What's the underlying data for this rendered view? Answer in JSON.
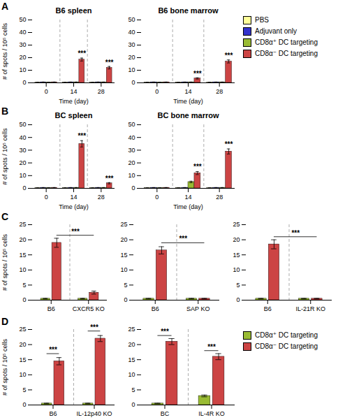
{
  "chart_data": [
    {
      "type": "bar",
      "title": "B6 spleen",
      "subtitle": "A",
      "xlabel": "Time (day)",
      "ylabel": "# of spots / 10⁵ cells",
      "categories": [
        "0",
        "14",
        "28"
      ],
      "series": [
        {
          "name": "PBS",
          "color": "#ffff99",
          "values": [
            0.3,
            0.3,
            0.3
          ],
          "errors": [
            0.1,
            0.1,
            0.1
          ]
        },
        {
          "name": "Adjuvant only",
          "color": "#3333cc",
          "values": [
            0.5,
            0.5,
            0.5
          ],
          "errors": [
            0.1,
            0.1,
            0.1
          ]
        },
        {
          "name": "CD8α⁺ DC targeting",
          "color": "#99bb33",
          "values": [
            0.4,
            0.5,
            0.5
          ],
          "errors": [
            0.1,
            0.1,
            0.1
          ]
        },
        {
          "name": "CD8α⁻ DC targeting",
          "color": "#cc4444",
          "values": [
            0.5,
            18.5,
            12.0
          ],
          "errors": [
            0.1,
            1.2,
            1.0
          ]
        }
      ],
      "ylim": [
        0,
        50
      ],
      "yticks": [
        0,
        10,
        20,
        30,
        40,
        50
      ],
      "annotations": [
        {
          "text": "***",
          "y": 20.8,
          "points": [
            {
              "x": "14",
              "series": "CD8α⁻ DC targeting"
            }
          ]
        },
        {
          "text": "***",
          "y": 13.8,
          "points": [
            {
              "x": "28",
              "series": "CD8α⁻ DC targeting"
            }
          ]
        }
      ]
    },
    {
      "type": "bar",
      "title": "B6 bone marrow",
      "legend": "right",
      "xlabel": "Time (day)",
      "categories": [
        "0",
        "14",
        "28"
      ],
      "series": [
        {
          "name": "PBS",
          "color": "#ffff99",
          "values": [
            0.3,
            0.3,
            0.3
          ],
          "errors": [
            0.1,
            0.1,
            0.1
          ]
        },
        {
          "name": "Adjuvant only",
          "color": "#3333cc",
          "values": [
            0.5,
            0.5,
            0.5
          ],
          "errors": [
            0.1,
            0.1,
            0.1
          ]
        },
        {
          "name": "CD8α⁺ DC targeting",
          "color": "#99bb33",
          "values": [
            0.4,
            0.5,
            0.5
          ],
          "errors": [
            0.1,
            0.1,
            0.1
          ]
        },
        {
          "name": "CD8α⁻ DC targeting",
          "color": "#cc4444",
          "values": [
            0.5,
            3.5,
            17.0
          ],
          "errors": [
            0.1,
            0.5,
            1.2
          ]
        }
      ],
      "ylim": [
        0,
        50
      ],
      "yticks": [
        0,
        10,
        20,
        30,
        40,
        50
      ],
      "annotations": [
        {
          "text": "***",
          "y": 5.0,
          "points": [
            {
              "x": "14",
              "series": "CD8α⁻ DC targeting"
            }
          ]
        },
        {
          "text": "***",
          "y": 19.2,
          "points": [
            {
              "x": "28",
              "series": "CD8α⁻ DC targeting"
            }
          ]
        }
      ]
    },
    {
      "type": "bar",
      "title": "BC spleen",
      "subtitle": "B",
      "xlabel": "Time (day)",
      "ylabel": "# of spots / 10⁵ cells",
      "categories": [
        "0",
        "14",
        "28"
      ],
      "series": [
        {
          "name": "PBS",
          "color": "#ffff99",
          "values": [
            0.3,
            0.3,
            0.3
          ],
          "errors": [
            0.1,
            0.1,
            0.1
          ]
        },
        {
          "name": "Adjuvant only",
          "color": "#3333cc",
          "values": [
            0.5,
            0.5,
            0.5
          ],
          "errors": [
            0.1,
            0.1,
            0.1
          ]
        },
        {
          "name": "CD8α⁺ DC targeting",
          "color": "#99bb33",
          "values": [
            0.4,
            0.5,
            0.5
          ],
          "errors": [
            0.1,
            0.1,
            0.1
          ]
        },
        {
          "name": "CD8α⁻ DC targeting",
          "color": "#cc4444",
          "values": [
            0.5,
            35.0,
            4.0
          ],
          "errors": [
            0.1,
            2.5,
            0.5
          ]
        }
      ],
      "ylim": [
        0,
        50
      ],
      "yticks": [
        0,
        10,
        20,
        30,
        40,
        50
      ],
      "annotations": [
        {
          "text": "***",
          "y": 38.5,
          "points": [
            {
              "x": "14",
              "series": "CD8α⁻ DC targeting"
            }
          ]
        },
        {
          "text": "***",
          "y": 5.3,
          "points": [
            {
              "x": "28",
              "series": "CD8α⁻ DC targeting"
            }
          ]
        }
      ]
    },
    {
      "type": "bar",
      "title": "BC bone marrow",
      "xlabel": "Time (day)",
      "categories": [
        "0",
        "14",
        "28"
      ],
      "series": [
        {
          "name": "PBS",
          "color": "#ffff99",
          "values": [
            0.3,
            0.3,
            0.3
          ],
          "errors": [
            0.1,
            0.1,
            0.1
          ]
        },
        {
          "name": "Adjuvant only",
          "color": "#3333cc",
          "values": [
            0.5,
            0.5,
            0.5
          ],
          "errors": [
            0.1,
            0.1,
            0.1
          ]
        },
        {
          "name": "CD8α⁺ DC targeting",
          "color": "#99bb33",
          "values": [
            0.4,
            5.0,
            0.5
          ],
          "errors": [
            0.1,
            0.6,
            0.1
          ]
        },
        {
          "name": "CD8α⁻ DC targeting",
          "color": "#cc4444",
          "values": [
            0.5,
            12.0,
            29.0
          ],
          "errors": [
            0.1,
            1.2,
            2.0
          ]
        }
      ],
      "ylim": [
        0,
        50
      ],
      "yticks": [
        0,
        10,
        20,
        30,
        40,
        50
      ],
      "annotations": [
        {
          "text": "***",
          "y": 14.5,
          "points": [
            {
              "x": "14",
              "series": "CD8α⁻ DC targeting"
            }
          ]
        },
        {
          "text": "***",
          "y": 32.0,
          "points": [
            {
              "x": "28",
              "series": "CD8α⁻ DC targeting"
            }
          ]
        }
      ]
    },
    {
      "type": "bar",
      "subtitle": "C",
      "ylabel": "# of spots / 10⁵ cells",
      "categories": [
        "B6",
        "CXCR5 KO"
      ],
      "series": [
        {
          "name": "CD8α⁺ DC targeting",
          "color": "#99bb33",
          "values": [
            0.5,
            0.5
          ],
          "errors": [
            0.1,
            0.1
          ]
        },
        {
          "name": "CD8α⁻ DC targeting",
          "color": "#cc4444",
          "values": [
            19.0,
            2.5
          ],
          "errors": [
            1.5,
            0.5
          ]
        }
      ],
      "ylim": [
        0,
        25
      ],
      "yticks": [
        0,
        5,
        10,
        15,
        20,
        25
      ],
      "annotations": [
        {
          "text": "***",
          "y": 21.5,
          "points": [
            {
              "x": "B6",
              "series": "CD8α⁻ DC targeting"
            },
            {
              "x": "CXCR5 KO",
              "series": "CD8α⁻ DC targeting"
            }
          ]
        }
      ]
    },
    {
      "type": "bar",
      "categories": [
        "B6",
        "SAP KO"
      ],
      "series": [
        {
          "name": "CD8α⁺ DC targeting",
          "color": "#99bb33",
          "values": [
            0.5,
            0.5
          ],
          "errors": [
            0.1,
            0.1
          ]
        },
        {
          "name": "CD8α⁻ DC targeting",
          "color": "#cc4444",
          "values": [
            16.5,
            0.5
          ],
          "errors": [
            1.2,
            0.1
          ]
        }
      ],
      "ylim": [
        0,
        25
      ],
      "yticks": [
        0,
        5,
        10,
        15,
        20,
        25
      ],
      "annotations": [
        {
          "text": "***",
          "y": 19.0,
          "points": [
            {
              "x": "B6",
              "series": "CD8α⁻ DC targeting"
            },
            {
              "x": "SAP KO",
              "series": "CD8α⁻ DC targeting"
            }
          ]
        }
      ]
    },
    {
      "type": "bar",
      "categories": [
        "B6",
        "IL-21R KO"
      ],
      "series": [
        {
          "name": "CD8α⁺ DC targeting",
          "color": "#99bb33",
          "values": [
            0.5,
            0.5
          ],
          "errors": [
            0.1,
            0.1
          ]
        },
        {
          "name": "CD8α⁻ DC targeting",
          "color": "#cc4444",
          "values": [
            18.5,
            0.5
          ],
          "errors": [
            1.5,
            0.1
          ]
        }
      ],
      "ylim": [
        0,
        25
      ],
      "yticks": [
        0,
        5,
        10,
        15,
        20,
        25
      ],
      "annotations": [
        {
          "text": "***",
          "y": 21.0,
          "points": [
            {
              "x": "B6",
              "series": "CD8α⁻ DC targeting"
            },
            {
              "x": "IL-21R KO",
              "series": "CD8α⁻ DC targeting"
            }
          ]
        }
      ]
    },
    {
      "type": "bar",
      "subtitle": "D",
      "ylabel": "# of spots / 10⁵ cells",
      "categories": [
        "B6",
        "IL-12p40 KO"
      ],
      "series": [
        {
          "name": "CD8α⁺ DC targeting",
          "color": "#99bb33",
          "values": [
            0.5,
            0.5
          ],
          "errors": [
            0.1,
            0.1
          ]
        },
        {
          "name": "CD8α⁻ DC targeting",
          "color": "#cc4444",
          "values": [
            14.5,
            22.0
          ],
          "errors": [
            1.2,
            1.0
          ]
        }
      ],
      "ylim": [
        0,
        25
      ],
      "yticks": [
        0,
        5,
        10,
        15,
        20,
        25
      ],
      "annotations": [
        {
          "text": "***",
          "y": 17.0,
          "points": [
            {
              "x": "B6",
              "series": "CD8α⁺ DC targeting"
            },
            {
              "x": "B6",
              "series": "CD8α⁻ DC targeting"
            }
          ]
        },
        {
          "text": "***",
          "y": 24.5,
          "points": [
            {
              "x": "IL-12p40 KO",
              "series": "CD8α⁺ DC targeting"
            },
            {
              "x": "IL-12p40 KO",
              "series": "CD8α⁻ DC targeting"
            }
          ]
        }
      ]
    },
    {
      "type": "bar",
      "legend": "right",
      "categories": [
        "BC",
        "IL-4R KO"
      ],
      "series": [
        {
          "name": "CD8α⁺ DC targeting",
          "color": "#99bb33",
          "values": [
            0.5,
            3.0
          ],
          "errors": [
            0.1,
            0.3
          ]
        },
        {
          "name": "CD8α⁻ DC targeting",
          "color": "#cc4444",
          "values": [
            21.0,
            16.0
          ],
          "errors": [
            1.0,
            1.0
          ]
        }
      ],
      "ylim": [
        0,
        25
      ],
      "yticks": [
        0,
        5,
        10,
        15,
        20,
        25
      ],
      "annotations": [
        {
          "text": "***",
          "y": 23.0,
          "points": [
            {
              "x": "BC",
              "series": "CD8α⁺ DC targeting"
            },
            {
              "x": "BC",
              "series": "CD8α⁻ DC targeting"
            }
          ]
        },
        {
          "text": "***",
          "y": 18.0,
          "points": [
            {
              "x": "IL-4R KO",
              "series": "CD8α⁺ DC targeting"
            },
            {
              "x": "IL-4R KO",
              "series": "CD8α⁻ DC targeting"
            }
          ]
        }
      ]
    }
  ]
}
